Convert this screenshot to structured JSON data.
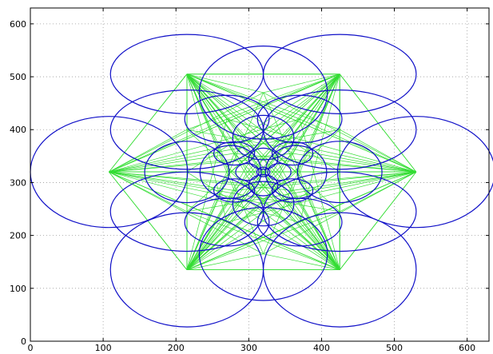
{
  "chart_data": {
    "type": "line",
    "xlim": [
      0,
      630
    ],
    "ylim": [
      0,
      630
    ],
    "x_ticks": [
      0,
      100,
      200,
      300,
      400,
      500,
      600
    ],
    "y_ticks": [
      0,
      100,
      200,
      300,
      400,
      500,
      600
    ],
    "grid": true,
    "colors": {
      "ellipses": "#1010c8",
      "spokes": "#33dd33"
    },
    "center": [
      320,
      320
    ],
    "hubs": [
      [
        215,
        505
      ],
      [
        425,
        505
      ],
      [
        108,
        320
      ],
      [
        530,
        320
      ],
      [
        215,
        135
      ],
      [
        425,
        135
      ]
    ],
    "ellipses": [
      {
        "cx": 215,
        "cy": 505,
        "rx": 105,
        "ry": 75
      },
      {
        "cx": 425,
        "cy": 505,
        "rx": 105,
        "ry": 75
      },
      {
        "cx": 108,
        "cy": 320,
        "rx": 108,
        "ry": 105
      },
      {
        "cx": 530,
        "cy": 320,
        "rx": 108,
        "ry": 105
      },
      {
        "cx": 215,
        "cy": 135,
        "rx": 105,
        "ry": 108
      },
      {
        "cx": 425,
        "cy": 135,
        "rx": 105,
        "ry": 108
      },
      {
        "cx": 320,
        "cy": 470,
        "rx": 88,
        "ry": 88
      },
      {
        "cx": 320,
        "cy": 165,
        "rx": 88,
        "ry": 88
      },
      {
        "cx": 215,
        "cy": 400,
        "rx": 105,
        "ry": 75
      },
      {
        "cx": 425,
        "cy": 400,
        "rx": 105,
        "ry": 75
      },
      {
        "cx": 215,
        "cy": 245,
        "rx": 105,
        "ry": 75
      },
      {
        "cx": 425,
        "cy": 245,
        "rx": 105,
        "ry": 75
      },
      {
        "cx": 215,
        "cy": 320,
        "rx": 58,
        "ry": 58
      },
      {
        "cx": 425,
        "cy": 320,
        "rx": 58,
        "ry": 58
      },
      {
        "cx": 270,
        "cy": 420,
        "rx": 58,
        "ry": 45
      },
      {
        "cx": 370,
        "cy": 420,
        "rx": 58,
        "ry": 45
      },
      {
        "cx": 270,
        "cy": 225,
        "rx": 58,
        "ry": 45
      },
      {
        "cx": 370,
        "cy": 225,
        "rx": 58,
        "ry": 45
      },
      {
        "cx": 320,
        "cy": 385,
        "rx": 42,
        "ry": 42
      },
      {
        "cx": 320,
        "cy": 260,
        "rx": 42,
        "ry": 42
      },
      {
        "cx": 275,
        "cy": 320,
        "rx": 42,
        "ry": 50
      },
      {
        "cx": 365,
        "cy": 320,
        "rx": 42,
        "ry": 50
      },
      {
        "cx": 280,
        "cy": 355,
        "rx": 28,
        "ry": 22
      },
      {
        "cx": 360,
        "cy": 355,
        "rx": 28,
        "ry": 22
      },
      {
        "cx": 280,
        "cy": 285,
        "rx": 28,
        "ry": 22
      },
      {
        "cx": 360,
        "cy": 285,
        "rx": 28,
        "ry": 22
      },
      {
        "cx": 320,
        "cy": 345,
        "rx": 20,
        "ry": 20
      },
      {
        "cx": 320,
        "cy": 295,
        "rx": 20,
        "ry": 20
      },
      {
        "cx": 298,
        "cy": 320,
        "rx": 16,
        "ry": 16
      },
      {
        "cx": 342,
        "cy": 320,
        "rx": 16,
        "ry": 16
      },
      {
        "cx": 320,
        "cy": 320,
        "rx": 9,
        "ry": 9
      }
    ]
  }
}
